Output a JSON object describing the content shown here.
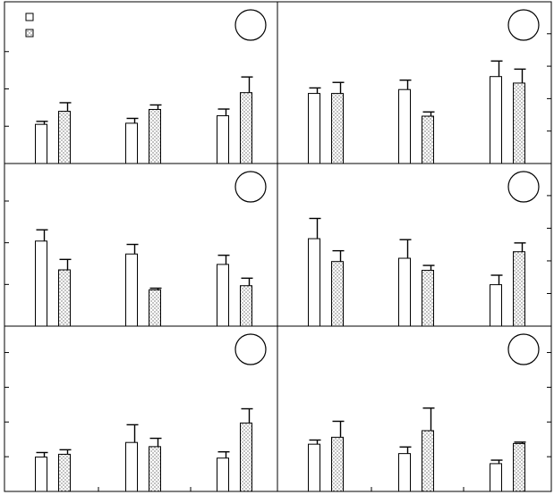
{
  "figure_layout": {
    "rows": 3,
    "cols": 2
  },
  "legend": {
    "entries": [
      {
        "series": "series-1",
        "pattern": "open"
      },
      {
        "series": "series-2",
        "pattern": "dotted"
      }
    ]
  },
  "chart_data": [
    {
      "type": "bar",
      "panel": 1,
      "ylim": [
        0,
        4
      ],
      "groups": 3,
      "series": [
        {
          "id": "series-1",
          "pattern": "open",
          "values": [
            1.05,
            1.08,
            1.28
          ],
          "errors": [
            0.08,
            0.13,
            0.18
          ]
        },
        {
          "id": "series-2",
          "pattern": "dotted",
          "values": [
            1.4,
            1.45,
            1.9
          ],
          "errors": [
            0.23,
            0.12,
            0.42
          ]
        }
      ]
    },
    {
      "type": "bar",
      "panel": 2,
      "ylim": [
        0,
        4.6
      ],
      "groups": 3,
      "series": [
        {
          "id": "series-1",
          "pattern": "open",
          "values": [
            2.16,
            2.28,
            2.68
          ],
          "errors": [
            0.17,
            0.29,
            0.48
          ]
        },
        {
          "id": "series-2",
          "pattern": "dotted",
          "values": [
            2.16,
            1.46,
            2.48
          ],
          "errors": [
            0.34,
            0.13,
            0.43
          ]
        }
      ]
    },
    {
      "type": "bar",
      "panel": 3,
      "ylim": [
        0,
        3.6
      ],
      "groups": 3,
      "series": [
        {
          "id": "series-1",
          "pattern": "open",
          "values": [
            2.04,
            1.73,
            1.48
          ],
          "errors": [
            0.27,
            0.23,
            0.22
          ]
        },
        {
          "id": "series-2",
          "pattern": "dotted",
          "values": [
            1.35,
            0.87,
            0.97
          ],
          "errors": [
            0.25,
            0.04,
            0.18
          ]
        }
      ]
    },
    {
      "type": "bar",
      "panel": 4,
      "ylim": [
        0,
        4.6
      ],
      "groups": 3,
      "series": [
        {
          "id": "series-1",
          "pattern": "open",
          "values": [
            2.68,
            2.08,
            1.27
          ],
          "errors": [
            0.62,
            0.57,
            0.29
          ]
        },
        {
          "id": "series-2",
          "pattern": "dotted",
          "values": [
            1.98,
            1.71,
            2.28
          ],
          "errors": [
            0.33,
            0.15,
            0.27
          ]
        }
      ]
    },
    {
      "type": "bar",
      "panel": 5,
      "ylim": [
        0,
        4.4
      ],
      "groups": 3,
      "series": [
        {
          "id": "series-1",
          "pattern": "open",
          "values": [
            0.99,
            1.41,
            0.96
          ],
          "errors": [
            0.13,
            0.51,
            0.18
          ]
        },
        {
          "id": "series-2",
          "pattern": "dotted",
          "values": [
            1.07,
            1.29,
            1.97
          ],
          "errors": [
            0.13,
            0.24,
            0.41
          ]
        }
      ]
    },
    {
      "type": "bar",
      "panel": 6,
      "ylim": [
        0,
        4.4
      ],
      "groups": 3,
      "series": [
        {
          "id": "series-1",
          "pattern": "open",
          "values": [
            1.36,
            1.09,
            0.8
          ],
          "errors": [
            0.12,
            0.19,
            0.1
          ]
        },
        {
          "id": "series-2",
          "pattern": "dotted",
          "values": [
            1.56,
            1.75,
            1.38
          ],
          "errors": [
            0.46,
            0.65,
            0.04
          ]
        }
      ]
    }
  ]
}
